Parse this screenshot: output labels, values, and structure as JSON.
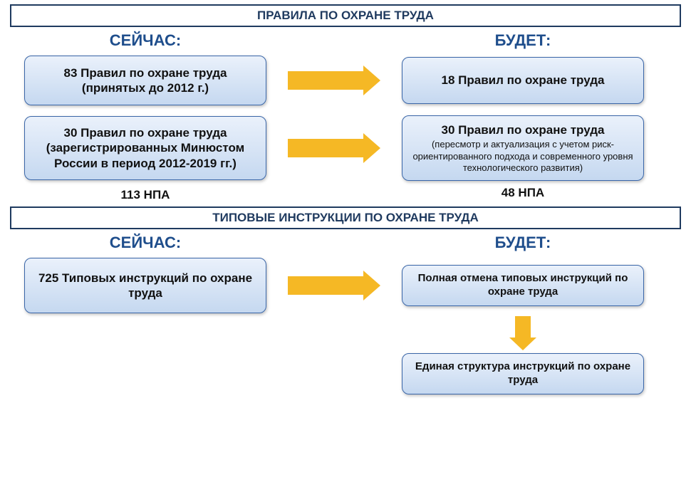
{
  "colors": {
    "header_text": "#1f3a5f",
    "header_border": "#1f3a5f",
    "label_text": "#1f4e8c",
    "box_gradient_top": "#eaf1fb",
    "box_gradient_bottom": "#c5d8f0",
    "box_border": "#3a66a8",
    "box_text": "#111111",
    "arrow_color": "#f5b825",
    "footer_text": "#111111"
  },
  "fonts": {
    "header_size": 17,
    "label_size": 22,
    "box_main_size": 17,
    "box_sub_size": 13,
    "footer_size": 17
  },
  "section1": {
    "title": "ПРАВИЛА ПО ОХРАНЕ ТРУДА",
    "left_label": "СЕЙЧАС:",
    "right_label": "БУДЕТ:",
    "row1": {
      "left_main": "83 Правил по охране труда",
      "left_sub": "(принятых до 2012 г.)",
      "right_main": "18 Правил по охране труда"
    },
    "row2": {
      "left_main": "30 Правил по охране труда",
      "left_sub": "(зарегистрированных Минюстом России в период 2012-2019 гг.)",
      "right_main": "30 Правил по охране труда",
      "right_sub": "(пересмотр и актуализация с учетом риск-ориентированного подхода и современного уровня технологического развития)"
    },
    "left_footer": "113 НПА",
    "right_footer": "48 НПА"
  },
  "section2": {
    "title": "ТИПОВЫЕ ИНСТРУКЦИИ ПО ОХРАНЕ ТРУДА",
    "left_label": "СЕЙЧАС:",
    "right_label": "БУДЕТ:",
    "left_main": "725 Типовых инструкций по охране труда",
    "right_box1": "Полная отмена типовых инструкций по охране труда",
    "right_box2": "Единая структура инструкций по охране труда"
  },
  "layout": {
    "box_left_w": 340,
    "box_left_h1": 70,
    "box_left_h2": 90,
    "box_right_w": 340,
    "box_right_h1": 66,
    "box_right_h2": 92,
    "box_s2_left_h": 78,
    "box_s2_right_h": 58,
    "arrow_h_len": 130,
    "arrow_h_shaft_h": 26,
    "arrow_h_head": 24,
    "arrow_v_len": 48,
    "arrow_v_shaft_w": 22,
    "arrow_v_head": 18
  }
}
